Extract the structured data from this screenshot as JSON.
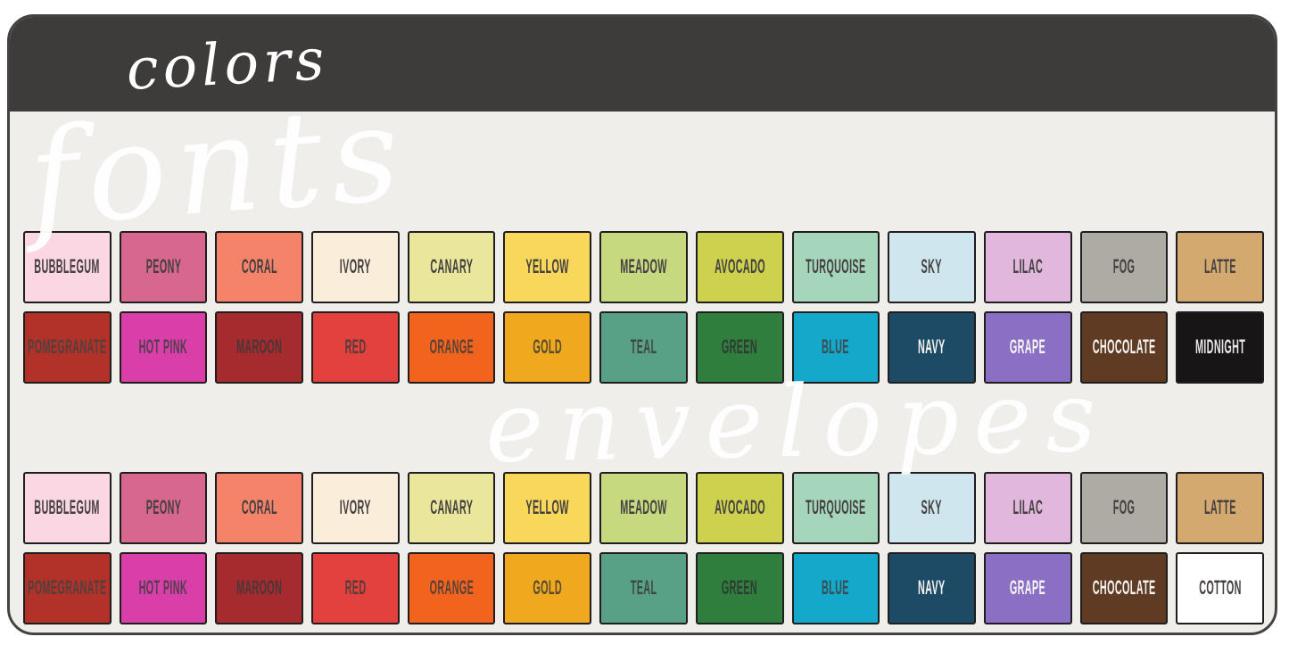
{
  "card": {
    "title": "colors",
    "header_bg": "#3e3b3b",
    "body_bg": "#f0eeea",
    "border_color": "#454242"
  },
  "watermarks": {
    "fonts": "fonts",
    "envelopes": "envelopes"
  },
  "text_colors": {
    "dark_label": "#444040",
    "light_label": "#f6f4f2"
  },
  "sets": [
    {
      "name": "colors-set-1",
      "rows": [
        [
          {
            "label": "BUBBLEGUM",
            "bg": "#fbd6e3",
            "fg": "#444040"
          },
          {
            "label": "PEONY",
            "bg": "#d7678f",
            "fg": "#444040"
          },
          {
            "label": "CORAL",
            "bg": "#f5836a",
            "fg": "#444040"
          },
          {
            "label": "IVORY",
            "bg": "#faeeda",
            "fg": "#444040"
          },
          {
            "label": "CANARY",
            "bg": "#eae79c",
            "fg": "#444040"
          },
          {
            "label": "YELLOW",
            "bg": "#f8d75b",
            "fg": "#444040"
          },
          {
            "label": "MEADOW",
            "bg": "#c7d97f",
            "fg": "#444040"
          },
          {
            "label": "AVOCADO",
            "bg": "#cdd14d",
            "fg": "#444040"
          },
          {
            "label": "TURQUOISE",
            "bg": "#a5d5bb",
            "fg": "#444040"
          },
          {
            "label": "SKY",
            "bg": "#cfe6ee",
            "fg": "#444040"
          },
          {
            "label": "LILAC",
            "bg": "#e2b7dd",
            "fg": "#444040"
          },
          {
            "label": "FOG",
            "bg": "#aeaaa4",
            "fg": "#444040"
          },
          {
            "label": "LATTE",
            "bg": "#d4a970",
            "fg": "#444040"
          }
        ],
        [
          {
            "label": "POMEGRANATE",
            "bg": "#b23129",
            "fg": "#53403c"
          },
          {
            "label": "HOT PINK",
            "bg": "#d93ea9",
            "fg": "#533f50"
          },
          {
            "label": "MAROON",
            "bg": "#a52b2e",
            "fg": "#4a3636"
          },
          {
            "label": "RED",
            "bg": "#e2413d",
            "fg": "#553d3b"
          },
          {
            "label": "ORANGE",
            "bg": "#f2641e",
            "fg": "#5a4236"
          },
          {
            "label": "GOLD",
            "bg": "#f0a91e",
            "fg": "#564a33"
          },
          {
            "label": "TEAL",
            "bg": "#58a186",
            "fg": "#3d4a44"
          },
          {
            "label": "GREEN",
            "bg": "#2f7e3e",
            "fg": "#2e3c31"
          },
          {
            "label": "BLUE",
            "bg": "#14a8ca",
            "fg": "#3b4d52"
          },
          {
            "label": "NAVY",
            "bg": "#1d4b66",
            "fg": "#f6f4f2"
          },
          {
            "label": "GRAPE",
            "bg": "#8a6fc4",
            "fg": "#f6f4f2"
          },
          {
            "label": "CHOCOLATE",
            "bg": "#5e3b22",
            "fg": "#f6f4f2"
          },
          {
            "label": "MIDNIGHT",
            "bg": "#171515",
            "fg": "#e9e7e5"
          }
        ]
      ]
    },
    {
      "name": "colors-set-2",
      "rows": [
        [
          {
            "label": "BUBBLEGUM",
            "bg": "#fbd6e3",
            "fg": "#444040"
          },
          {
            "label": "PEONY",
            "bg": "#d7678f",
            "fg": "#444040"
          },
          {
            "label": "CORAL",
            "bg": "#f5836a",
            "fg": "#444040"
          },
          {
            "label": "IVORY",
            "bg": "#faeeda",
            "fg": "#444040"
          },
          {
            "label": "CANARY",
            "bg": "#eae79c",
            "fg": "#444040"
          },
          {
            "label": "YELLOW",
            "bg": "#f8d75b",
            "fg": "#444040"
          },
          {
            "label": "MEADOW",
            "bg": "#c7d97f",
            "fg": "#444040"
          },
          {
            "label": "AVOCADO",
            "bg": "#cdd14d",
            "fg": "#444040"
          },
          {
            "label": "TURQUOISE",
            "bg": "#a5d5bb",
            "fg": "#444040"
          },
          {
            "label": "SKY",
            "bg": "#cfe6ee",
            "fg": "#444040"
          },
          {
            "label": "LILAC",
            "bg": "#e2b7dd",
            "fg": "#444040"
          },
          {
            "label": "FOG",
            "bg": "#aeaaa4",
            "fg": "#444040"
          },
          {
            "label": "LATTE",
            "bg": "#d4a970",
            "fg": "#444040"
          }
        ],
        [
          {
            "label": "POMEGRANATE",
            "bg": "#b23129",
            "fg": "#53403c"
          },
          {
            "label": "HOT PINK",
            "bg": "#d93ea9",
            "fg": "#533f50"
          },
          {
            "label": "MAROON",
            "bg": "#a52b2e",
            "fg": "#4a3636"
          },
          {
            "label": "RED",
            "bg": "#e2413d",
            "fg": "#553d3b"
          },
          {
            "label": "ORANGE",
            "bg": "#f2641e",
            "fg": "#5a4236"
          },
          {
            "label": "GOLD",
            "bg": "#f0a91e",
            "fg": "#564a33"
          },
          {
            "label": "TEAL",
            "bg": "#58a186",
            "fg": "#3d4a44"
          },
          {
            "label": "GREEN",
            "bg": "#2f7e3e",
            "fg": "#2e3c31"
          },
          {
            "label": "BLUE",
            "bg": "#14a8ca",
            "fg": "#3b4d52"
          },
          {
            "label": "NAVY",
            "bg": "#1d4b66",
            "fg": "#f6f4f2"
          },
          {
            "label": "GRAPE",
            "bg": "#8a6fc4",
            "fg": "#f6f4f2"
          },
          {
            "label": "CHOCOLATE",
            "bg": "#5e3b22",
            "fg": "#f6f4f2"
          },
          {
            "label": "COTTON",
            "bg": "#ffffff",
            "fg": "#444040"
          }
        ]
      ]
    }
  ]
}
